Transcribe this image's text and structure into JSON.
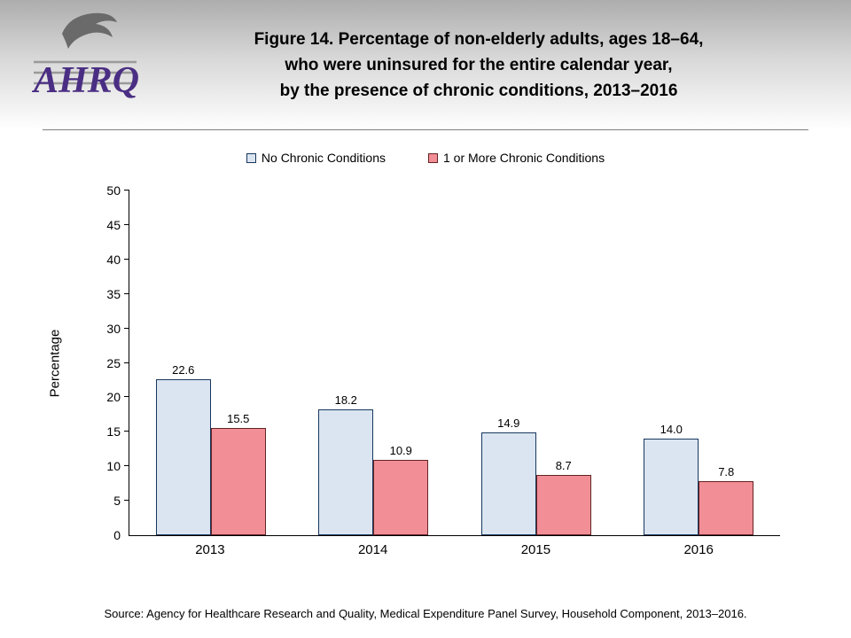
{
  "header": {
    "logo_text": "AHRQ",
    "title_line1": "Figure 14. Percentage of non-elderly adults, ages 18–64,",
    "title_line2": "who were uninsured for the entire calendar year,",
    "title_line3": "by the presence of chronic conditions, 2013–2016"
  },
  "chart_data": {
    "type": "bar",
    "title": "Figure 14. Percentage of non-elderly adults, ages 18–64, who were uninsured for the entire calendar year, by the presence of chronic conditions, 2013–2016",
    "categories": [
      "2013",
      "2014",
      "2015",
      "2016"
    ],
    "series": [
      {
        "name": "No Chronic Conditions",
        "values": [
          22.6,
          18.2,
          14.9,
          14.0
        ],
        "fill": "#dbe5f1",
        "border": "#17375e"
      },
      {
        "name": "1 or More Chronic Conditions",
        "values": [
          15.5,
          10.9,
          8.7,
          7.8
        ],
        "fill": "#f28e96",
        "border": "#632423"
      }
    ],
    "xlabel": "",
    "ylabel": "Percentage",
    "ylim": [
      0,
      50
    ],
    "ytick_step": 5,
    "grid": false,
    "legend_position": "top"
  },
  "footer": {
    "source": "Source: Agency for Healthcare Research and Quality, Medical Expenditure Panel Survey, Household Component, 2013–2016."
  }
}
